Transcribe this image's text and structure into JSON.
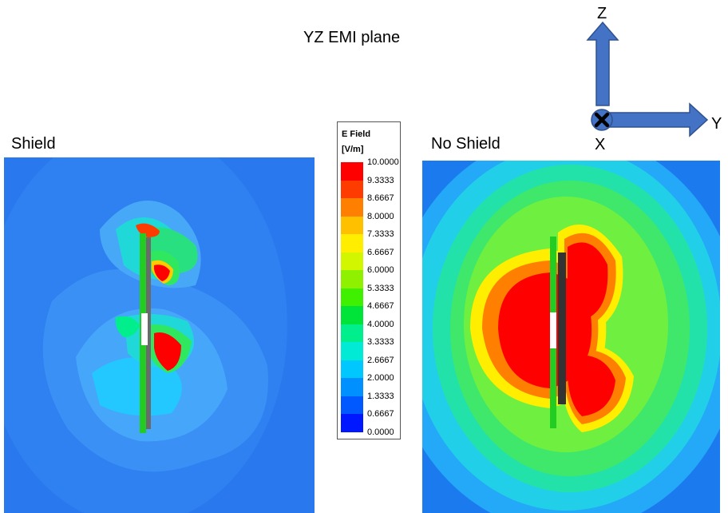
{
  "title": "YZ EMI plane",
  "panels": {
    "left_label": "Shield",
    "right_label": "No Shield"
  },
  "legend": {
    "title_line1": "E Field",
    "title_line2": "[V/m]",
    "ticks": [
      "10.0000",
      "9.3333",
      "8.6667",
      "8.0000",
      "7.3333",
      "6.6667",
      "6.0000",
      "5.3333",
      "4.6667",
      "4.0000",
      "3.3333",
      "2.6667",
      "2.0000",
      "1.3333",
      "0.6667",
      "0.0000"
    ],
    "colors": [
      "#ff0000",
      "#ff3c00",
      "#ff8000",
      "#ffc000",
      "#ffee00",
      "#d2f500",
      "#8ff000",
      "#3ff000",
      "#00e43a",
      "#00ee8c",
      "#00ead6",
      "#00c8ff",
      "#0090ff",
      "#0058ff",
      "#0018ff"
    ]
  },
  "axes": {
    "z_label": "Z",
    "y_label": "Y",
    "x_label": "X",
    "arrow_color": "#4472c4"
  }
}
